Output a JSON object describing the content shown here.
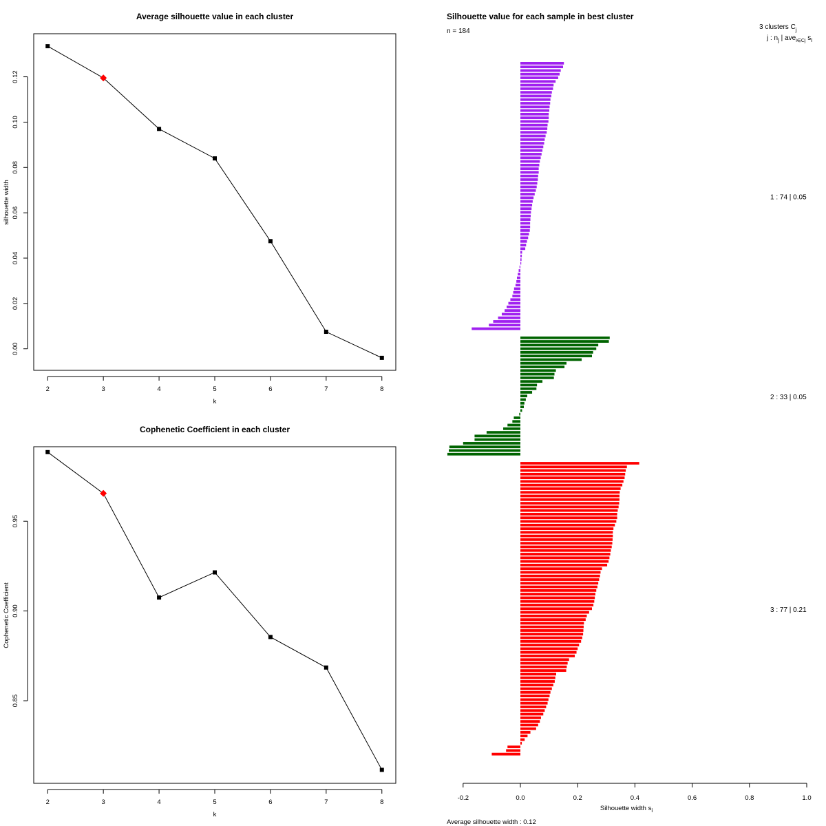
{
  "chart_data": [
    {
      "type": "line",
      "title": "Average silhouette value in each cluster",
      "xlabel": "k",
      "ylabel": "silhouette width",
      "x": [
        2,
        3,
        4,
        5,
        6,
        7,
        8
      ],
      "y": [
        0.1335,
        0.1195,
        0.097,
        0.084,
        0.0475,
        0.0075,
        -0.004
      ],
      "highlight_x": 3,
      "highlight_color": "#ff0000",
      "xticks": [
        "2",
        "3",
        "4",
        "5",
        "6",
        "7",
        "8"
      ],
      "yticks": [
        "0.00",
        "0.02",
        "0.04",
        "0.06",
        "0.08",
        "0.10",
        "0.12"
      ],
      "xlim": [
        1.75,
        8.25
      ],
      "ylim": [
        -0.0095,
        0.139
      ]
    },
    {
      "type": "line",
      "title": "Cophenetic Coefficient in each cluster",
      "xlabel": "k",
      "ylabel": "Cophenetic Coefficient",
      "x": [
        2,
        3,
        4,
        5,
        6,
        7,
        8
      ],
      "y": [
        0.9885,
        0.9655,
        0.9075,
        0.9215,
        0.8855,
        0.8685,
        0.8115
      ],
      "highlight_x": 3,
      "highlight_color": "#ff0000",
      "xticks": [
        "2",
        "3",
        "4",
        "5",
        "6",
        "7",
        "8"
      ],
      "yticks": [
        "0.85",
        "0.90",
        "0.95"
      ],
      "xlim": [
        1.75,
        8.25
      ],
      "ylim": [
        0.804,
        0.9915
      ]
    },
    {
      "type": "bar",
      "orientation": "horizontal",
      "title": "Silhouette value for each sample in best cluster",
      "n_label": "n = 184",
      "xlabel": "Silhouette width s",
      "xlabel_sub": "i",
      "footer": "Average silhouette width :  0.12",
      "header_line1": "3  clusters  C",
      "header_line1_sub": "j",
      "header_line2": "j :  n",
      "header_line2_mid": "  |  ave",
      "header_line2_sub2": "i∈Cj",
      "header_line2_tail": "  s",
      "header_line2_sub3": "i",
      "xticks": [
        "-0.2",
        "0.0",
        "0.2",
        "0.4",
        "0.6",
        "0.8",
        "1.0"
      ],
      "xlim": [
        -0.2,
        1.0
      ],
      "clusters": [
        {
          "label": "1 :  74  |  0.05",
          "color": "#a020f0",
          "values": [
            0.152,
            0.149,
            0.141,
            0.137,
            0.132,
            0.123,
            0.116,
            0.114,
            0.11,
            0.108,
            0.105,
            0.104,
            0.102,
            0.101,
            0.099,
            0.099,
            0.098,
            0.095,
            0.094,
            0.092,
            0.088,
            0.085,
            0.083,
            0.08,
            0.077,
            0.074,
            0.071,
            0.068,
            0.066,
            0.064,
            0.064,
            0.062,
            0.061,
            0.059,
            0.057,
            0.054,
            0.05,
            0.046,
            0.043,
            0.041,
            0.039,
            0.037,
            0.036,
            0.035,
            0.034,
            0.034,
            0.033,
            0.03,
            0.027,
            0.023,
            0.02,
            0.017,
            0.006,
            0.005,
            0.004,
            0.003,
            -0.003,
            -0.006,
            -0.009,
            -0.012,
            -0.014,
            -0.017,
            -0.022,
            -0.025,
            -0.028,
            -0.035,
            -0.042,
            -0.048,
            -0.055,
            -0.065,
            -0.078,
            -0.095,
            -0.11,
            -0.17
          ]
        },
        {
          "label": "2 :  33  |  0.05",
          "color": "#006400",
          "values": [
            0.312,
            0.309,
            0.272,
            0.265,
            0.254,
            0.25,
            0.214,
            0.161,
            0.154,
            0.124,
            0.119,
            0.117,
            0.077,
            0.058,
            0.056,
            0.041,
            0.024,
            0.019,
            0.014,
            0.012,
            0.006,
            -0.004,
            -0.023,
            -0.028,
            -0.045,
            -0.06,
            -0.118,
            -0.16,
            -0.16,
            -0.2,
            -0.248,
            -0.25,
            -0.255
          ]
        },
        {
          "label": "3 :  77  |  0.21",
          "color": "#ff0000",
          "values": [
            0.415,
            0.372,
            0.368,
            0.366,
            0.364,
            0.36,
            0.356,
            0.35,
            0.347,
            0.346,
            0.346,
            0.345,
            0.343,
            0.34,
            0.338,
            0.338,
            0.335,
            0.33,
            0.325,
            0.323,
            0.323,
            0.322,
            0.321,
            0.319,
            0.316,
            0.314,
            0.311,
            0.308,
            0.303,
            0.285,
            0.28,
            0.278,
            0.275,
            0.272,
            0.269,
            0.265,
            0.262,
            0.26,
            0.258,
            0.255,
            0.25,
            0.24,
            0.232,
            0.228,
            0.222,
            0.221,
            0.22,
            0.219,
            0.216,
            0.212,
            0.205,
            0.2,
            0.196,
            0.19,
            0.17,
            0.165,
            0.162,
            0.16,
            0.125,
            0.122,
            0.12,
            0.115,
            0.11,
            0.105,
            0.102,
            0.098,
            0.095,
            0.09,
            0.085,
            0.08,
            0.072,
            0.068,
            0.062,
            0.055,
            0.035,
            0.025,
            0.015,
            0.005,
            -0.045,
            -0.05,
            -0.1
          ]
        }
      ]
    }
  ]
}
